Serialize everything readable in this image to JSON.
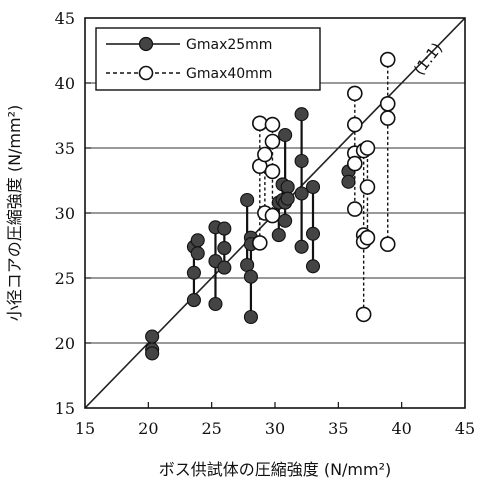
{
  "chart_data": {
    "type": "scatter",
    "xlabel": "ボス供試体の圧縮強度 (N/mm²)",
    "ylabel": "小径コアの圧縮強度 (N/mm²)",
    "xlim": [
      15,
      45
    ],
    "ylim": [
      15,
      45
    ],
    "xticks": [
      "15",
      "20",
      "25",
      "30",
      "35",
      "40",
      "45"
    ],
    "yticks": [
      "15",
      "20",
      "25",
      "30",
      "35",
      "40",
      "45"
    ],
    "grid": "horizontal",
    "legend_position": "top-left",
    "reference_line_label": "(1:1)",
    "series": [
      {
        "name": "Gmax25mm",
        "marker": "filled-circle",
        "line": "solid",
        "groups": [
          {
            "x": 20.3,
            "y": [
              20.5,
              19.5,
              19.2
            ]
          },
          {
            "x": 23.6,
            "y": [
              27.4,
              25.4,
              23.3
            ]
          },
          {
            "x": 23.9,
            "y": [
              27.9,
              26.9
            ]
          },
          {
            "x": 25.3,
            "y": [
              28.9,
              26.3,
              23.0
            ]
          },
          {
            "x": 26.0,
            "y": [
              28.8,
              27.3,
              25.8
            ]
          },
          {
            "x": 27.8,
            "y": [
              31.0,
              26.0
            ]
          },
          {
            "x": 28.1,
            "y": [
              28.1,
              27.6,
              25.1,
              22.0
            ]
          },
          {
            "x": 30.3,
            "y": [
              30.8,
              28.3
            ]
          },
          {
            "x": 30.6,
            "y": [
              32.2,
              31.0
            ]
          },
          {
            "x": 30.8,
            "y": [
              36.0,
              30.8,
              29.4
            ]
          },
          {
            "x": 31.0,
            "y": [
              32.0,
              31.1
            ]
          },
          {
            "x": 32.1,
            "y": [
              37.6,
              34.0,
              31.5,
              27.4
            ]
          },
          {
            "x": 33.0,
            "y": [
              32.0,
              28.4,
              25.9
            ]
          },
          {
            "x": 35.8,
            "y": [
              33.2,
              32.4
            ]
          }
        ]
      },
      {
        "name": "Gmax40mm",
        "marker": "open-circle",
        "line": "dashed",
        "groups": [
          {
            "x": 28.8,
            "y": [
              36.9,
              33.6,
              27.7
            ]
          },
          {
            "x": 29.2,
            "y": [
              34.5,
              30.0
            ]
          },
          {
            "x": 29.8,
            "y": [
              36.8,
              35.5,
              33.2,
              29.8
            ]
          },
          {
            "x": 36.3,
            "y": [
              39.2,
              36.8,
              34.6,
              33.8,
              30.3
            ]
          },
          {
            "x": 37.0,
            "y": [
              34.8,
              28.3,
              27.8,
              22.2
            ]
          },
          {
            "x": 37.3,
            "y": [
              35.0,
              32.0,
              28.1
            ]
          },
          {
            "x": 38.9,
            "y": [
              41.8,
              38.4,
              37.3,
              27.6
            ]
          }
        ]
      }
    ]
  }
}
